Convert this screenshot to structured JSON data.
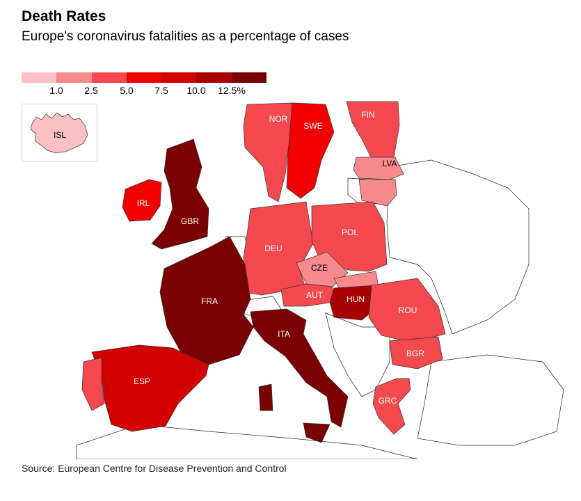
{
  "title": "Death Rates",
  "subtitle": "Europe's coronavirus fatalities as a percentage of cases",
  "legend": {
    "colors": [
      "#fdc0c4",
      "#f88a8e",
      "#f44a4f",
      "#f00000",
      "#d20000",
      "#a80000",
      "#7a0000"
    ],
    "ticks": [
      "1.0",
      "2.5",
      "5.0",
      "7.5",
      "10.0",
      "12.5%"
    ]
  },
  "source": "Source: European Centre for Disease Prevention and Control",
  "countries": {
    "isl": {
      "label": "ISL",
      "color": "#fdc0c4"
    },
    "nor": {
      "label": "NOR",
      "color": "#f44a4f"
    },
    "swe": {
      "label": "SWE",
      "color": "#f00000"
    },
    "fin": {
      "label": "FIN",
      "color": "#f44a4f"
    },
    "lva": {
      "label": "LVA",
      "color": "#f88a8e"
    },
    "irl": {
      "label": "IRL",
      "color": "#f00000"
    },
    "gbr": {
      "label": "GBR",
      "color": "#7a0000"
    },
    "deu": {
      "label": "DEU",
      "color": "#f44a4f"
    },
    "pol": {
      "label": "POL",
      "color": "#f44a4f"
    },
    "cze": {
      "label": "CZE",
      "color": "#f88a8e"
    },
    "aut": {
      "label": "AUT",
      "color": "#f44a4f"
    },
    "hun": {
      "label": "HUN",
      "color": "#a80000"
    },
    "fra": {
      "label": "FRA",
      "color": "#7a0000"
    },
    "rou": {
      "label": "ROU",
      "color": "#f44a4f"
    },
    "bgr": {
      "label": "BGR",
      "color": "#f44a4f"
    },
    "ita": {
      "label": "ITA",
      "color": "#7a0000"
    },
    "esp": {
      "label": "ESP",
      "color": "#d20000"
    },
    "grc": {
      "label": "GRC",
      "color": "#f44a4f"
    }
  }
}
